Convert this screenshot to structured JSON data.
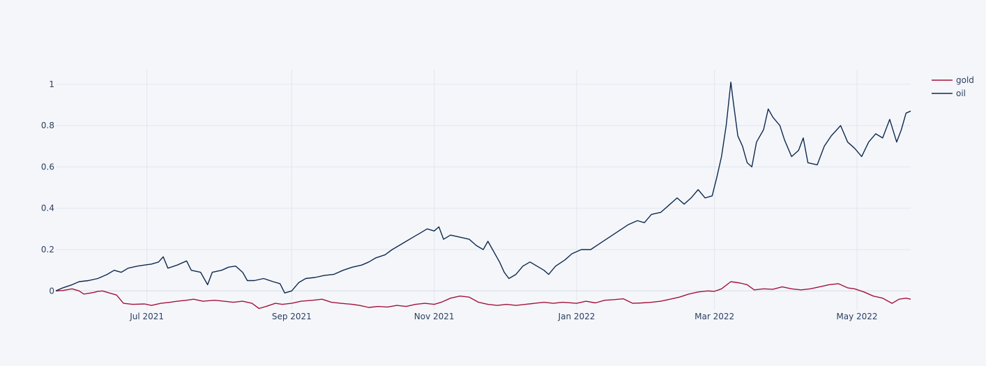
{
  "chart_data": {
    "type": "line",
    "title": "",
    "xlabel": "",
    "ylabel": "",
    "x_range": [
      "2021-05-23",
      "2022-05-24"
    ],
    "ylim": [
      -0.09,
      1.07
    ],
    "grid": true,
    "legend_position": "top-right",
    "x_ticks": [
      {
        "date": "2021-07-01",
        "label": "Jul 2021"
      },
      {
        "date": "2021-09-01",
        "label": "Sep 2021"
      },
      {
        "date": "2021-11-01",
        "label": "Nov 2021"
      },
      {
        "date": "2022-01-01",
        "label": "Jan 2022"
      },
      {
        "date": "2022-03-01",
        "label": "Mar 2022"
      },
      {
        "date": "2022-05-01",
        "label": "May 2022"
      }
    ],
    "y_ticks": [
      {
        "value": 0,
        "label": "0"
      },
      {
        "value": 0.2,
        "label": "0.2"
      },
      {
        "value": 0.4,
        "label": "0.4"
      },
      {
        "value": 0.6,
        "label": "0.6"
      },
      {
        "value": 0.8,
        "label": "0.8"
      },
      {
        "value": 1,
        "label": "1"
      }
    ],
    "series": [
      {
        "name": "gold",
        "color": "#a3123a",
        "points": [
          [
            "2021-05-23",
            0
          ],
          [
            "2021-05-26",
            0.002
          ],
          [
            "2021-05-30",
            0.01
          ],
          [
            "2021-06-02",
            0.0
          ],
          [
            "2021-06-04",
            -0.015
          ],
          [
            "2021-06-08",
            -0.008
          ],
          [
            "2021-06-10",
            -0.002
          ],
          [
            "2021-06-12",
            0.0
          ],
          [
            "2021-06-15",
            -0.01
          ],
          [
            "2021-06-18",
            -0.02
          ],
          [
            "2021-06-21",
            -0.06
          ],
          [
            "2021-06-25",
            -0.065
          ],
          [
            "2021-06-30",
            -0.063
          ],
          [
            "2021-07-03",
            -0.07
          ],
          [
            "2021-07-07",
            -0.06
          ],
          [
            "2021-07-11",
            -0.055
          ],
          [
            "2021-07-14",
            -0.05
          ],
          [
            "2021-07-18",
            -0.045
          ],
          [
            "2021-07-21",
            -0.04
          ],
          [
            "2021-07-25",
            -0.05
          ],
          [
            "2021-07-30",
            -0.045
          ],
          [
            "2021-08-03",
            -0.05
          ],
          [
            "2021-08-07",
            -0.055
          ],
          [
            "2021-08-11",
            -0.05
          ],
          [
            "2021-08-15",
            -0.06
          ],
          [
            "2021-08-18",
            -0.085
          ],
          [
            "2021-08-21",
            -0.075
          ],
          [
            "2021-08-25",
            -0.06
          ],
          [
            "2021-08-28",
            -0.065
          ],
          [
            "2021-09-01",
            -0.06
          ],
          [
            "2021-09-05",
            -0.05
          ],
          [
            "2021-09-10",
            -0.045
          ],
          [
            "2021-09-14",
            -0.04
          ],
          [
            "2021-09-18",
            -0.055
          ],
          [
            "2021-09-22",
            -0.06
          ],
          [
            "2021-09-27",
            -0.065
          ],
          [
            "2021-09-30",
            -0.07
          ],
          [
            "2021-10-04",
            -0.08
          ],
          [
            "2021-10-08",
            -0.075
          ],
          [
            "2021-10-12",
            -0.078
          ],
          [
            "2021-10-16",
            -0.07
          ],
          [
            "2021-10-20",
            -0.075
          ],
          [
            "2021-10-24",
            -0.065
          ],
          [
            "2021-10-28",
            -0.06
          ],
          [
            "2021-11-01",
            -0.065
          ],
          [
            "2021-11-04",
            -0.055
          ],
          [
            "2021-11-08",
            -0.035
          ],
          [
            "2021-11-12",
            -0.025
          ],
          [
            "2021-11-16",
            -0.03
          ],
          [
            "2021-11-20",
            -0.055
          ],
          [
            "2021-11-24",
            -0.065
          ],
          [
            "2021-11-28",
            -0.07
          ],
          [
            "2021-12-02",
            -0.065
          ],
          [
            "2021-12-06",
            -0.07
          ],
          [
            "2021-12-10",
            -0.065
          ],
          [
            "2021-12-14",
            -0.06
          ],
          [
            "2021-12-18",
            -0.055
          ],
          [
            "2021-12-22",
            -0.06
          ],
          [
            "2021-12-26",
            -0.055
          ],
          [
            "2022-01-01",
            -0.06
          ],
          [
            "2022-01-05",
            -0.05
          ],
          [
            "2022-01-09",
            -0.058
          ],
          [
            "2022-01-13",
            -0.045
          ],
          [
            "2022-01-17",
            -0.042
          ],
          [
            "2022-01-21",
            -0.038
          ],
          [
            "2022-01-25",
            -0.06
          ],
          [
            "2022-01-29",
            -0.058
          ],
          [
            "2022-02-02",
            -0.055
          ],
          [
            "2022-02-06",
            -0.05
          ],
          [
            "2022-02-10",
            -0.04
          ],
          [
            "2022-02-14",
            -0.03
          ],
          [
            "2022-02-18",
            -0.015
          ],
          [
            "2022-02-22",
            -0.005
          ],
          [
            "2022-02-26",
            0.0
          ],
          [
            "2022-03-01",
            -0.002
          ],
          [
            "2022-03-04",
            0.01
          ],
          [
            "2022-03-08",
            0.045
          ],
          [
            "2022-03-12",
            0.038
          ],
          [
            "2022-03-15",
            0.03
          ],
          [
            "2022-03-18",
            0.005
          ],
          [
            "2022-03-22",
            0.01
          ],
          [
            "2022-03-26",
            0.008
          ],
          [
            "2022-03-30",
            0.02
          ],
          [
            "2022-04-03",
            0.01
          ],
          [
            "2022-04-07",
            0.005
          ],
          [
            "2022-04-11",
            0.01
          ],
          [
            "2022-04-15",
            0.02
          ],
          [
            "2022-04-19",
            0.03
          ],
          [
            "2022-04-23",
            0.035
          ],
          [
            "2022-04-27",
            0.015
          ],
          [
            "2022-04-30",
            0.01
          ],
          [
            "2022-05-04",
            -0.005
          ],
          [
            "2022-05-08",
            -0.025
          ],
          [
            "2022-05-12",
            -0.035
          ],
          [
            "2022-05-16",
            -0.06
          ],
          [
            "2022-05-19",
            -0.04
          ],
          [
            "2022-05-22",
            -0.035
          ],
          [
            "2022-05-24",
            -0.04
          ]
        ]
      },
      {
        "name": "oil",
        "color": "#0d2a4f",
        "points": [
          [
            "2021-05-23",
            0.0
          ],
          [
            "2021-05-26",
            0.015
          ],
          [
            "2021-05-30",
            0.03
          ],
          [
            "2021-06-02",
            0.045
          ],
          [
            "2021-06-06",
            0.05
          ],
          [
            "2021-06-10",
            0.06
          ],
          [
            "2021-06-14",
            0.08
          ],
          [
            "2021-06-17",
            0.1
          ],
          [
            "2021-06-20",
            0.09
          ],
          [
            "2021-06-23",
            0.11
          ],
          [
            "2021-06-27",
            0.12
          ],
          [
            "2021-06-30",
            0.125
          ],
          [
            "2021-07-03",
            0.13
          ],
          [
            "2021-07-06",
            0.14
          ],
          [
            "2021-07-08",
            0.165
          ],
          [
            "2021-07-10",
            0.11
          ],
          [
            "2021-07-14",
            0.125
          ],
          [
            "2021-07-18",
            0.145
          ],
          [
            "2021-07-20",
            0.1
          ],
          [
            "2021-07-24",
            0.09
          ],
          [
            "2021-07-27",
            0.03
          ],
          [
            "2021-07-29",
            0.09
          ],
          [
            "2021-08-02",
            0.1
          ],
          [
            "2021-08-05",
            0.115
          ],
          [
            "2021-08-08",
            0.12
          ],
          [
            "2021-08-11",
            0.09
          ],
          [
            "2021-08-13",
            0.05
          ],
          [
            "2021-08-16",
            0.05
          ],
          [
            "2021-08-20",
            0.06
          ],
          [
            "2021-08-24",
            0.045
          ],
          [
            "2021-08-27",
            0.035
          ],
          [
            "2021-08-29",
            -0.01
          ],
          [
            "2021-09-01",
            0.0
          ],
          [
            "2021-09-04",
            0.04
          ],
          [
            "2021-09-07",
            0.06
          ],
          [
            "2021-09-11",
            0.065
          ],
          [
            "2021-09-15",
            0.075
          ],
          [
            "2021-09-19",
            0.08
          ],
          [
            "2021-09-23",
            0.1
          ],
          [
            "2021-09-27",
            0.115
          ],
          [
            "2021-10-01",
            0.125
          ],
          [
            "2021-10-04",
            0.14
          ],
          [
            "2021-10-07",
            0.16
          ],
          [
            "2021-10-11",
            0.175
          ],
          [
            "2021-10-14",
            0.2
          ],
          [
            "2021-10-17",
            0.22
          ],
          [
            "2021-10-20",
            0.24
          ],
          [
            "2021-10-23",
            0.26
          ],
          [
            "2021-10-26",
            0.28
          ],
          [
            "2021-10-29",
            0.3
          ],
          [
            "2021-11-01",
            0.29
          ],
          [
            "2021-11-03",
            0.31
          ],
          [
            "2021-11-05",
            0.25
          ],
          [
            "2021-11-08",
            0.27
          ],
          [
            "2021-11-12",
            0.26
          ],
          [
            "2021-11-16",
            0.25
          ],
          [
            "2021-11-19",
            0.22
          ],
          [
            "2021-11-22",
            0.2
          ],
          [
            "2021-11-24",
            0.24
          ],
          [
            "2021-11-26",
            0.2
          ],
          [
            "2021-11-29",
            0.14
          ],
          [
            "2021-12-01",
            0.09
          ],
          [
            "2021-12-03",
            0.06
          ],
          [
            "2021-12-06",
            0.08
          ],
          [
            "2021-12-09",
            0.12
          ],
          [
            "2021-12-12",
            0.14
          ],
          [
            "2021-12-15",
            0.12
          ],
          [
            "2021-12-18",
            0.1
          ],
          [
            "2021-12-20",
            0.08
          ],
          [
            "2021-12-23",
            0.12
          ],
          [
            "2021-12-27",
            0.15
          ],
          [
            "2021-12-30",
            0.18
          ],
          [
            "2022-01-03",
            0.2
          ],
          [
            "2022-01-07",
            0.2
          ],
          [
            "2022-01-11",
            0.23
          ],
          [
            "2022-01-15",
            0.26
          ],
          [
            "2022-01-19",
            0.29
          ],
          [
            "2022-01-23",
            0.32
          ],
          [
            "2022-01-27",
            0.34
          ],
          [
            "2022-01-30",
            0.33
          ],
          [
            "2022-02-02",
            0.37
          ],
          [
            "2022-02-06",
            0.38
          ],
          [
            "2022-02-10",
            0.42
          ],
          [
            "2022-02-13",
            0.45
          ],
          [
            "2022-02-16",
            0.42
          ],
          [
            "2022-02-19",
            0.45
          ],
          [
            "2022-02-22",
            0.49
          ],
          [
            "2022-02-25",
            0.45
          ],
          [
            "2022-02-28",
            0.46
          ],
          [
            "2022-03-02",
            0.55
          ],
          [
            "2022-03-04",
            0.65
          ],
          [
            "2022-03-06",
            0.8
          ],
          [
            "2022-03-08",
            1.01
          ],
          [
            "2022-03-09",
            0.92
          ],
          [
            "2022-03-11",
            0.75
          ],
          [
            "2022-03-13",
            0.7
          ],
          [
            "2022-03-15",
            0.62
          ],
          [
            "2022-03-17",
            0.6
          ],
          [
            "2022-03-19",
            0.72
          ],
          [
            "2022-03-22",
            0.78
          ],
          [
            "2022-03-24",
            0.88
          ],
          [
            "2022-03-26",
            0.84
          ],
          [
            "2022-03-29",
            0.8
          ],
          [
            "2022-03-31",
            0.73
          ],
          [
            "2022-04-03",
            0.65
          ],
          [
            "2022-04-06",
            0.68
          ],
          [
            "2022-04-08",
            0.74
          ],
          [
            "2022-04-10",
            0.62
          ],
          [
            "2022-04-14",
            0.61
          ],
          [
            "2022-04-17",
            0.7
          ],
          [
            "2022-04-20",
            0.75
          ],
          [
            "2022-04-24",
            0.8
          ],
          [
            "2022-04-27",
            0.72
          ],
          [
            "2022-04-30",
            0.69
          ],
          [
            "2022-05-03",
            0.65
          ],
          [
            "2022-05-06",
            0.72
          ],
          [
            "2022-05-09",
            0.76
          ],
          [
            "2022-05-12",
            0.74
          ],
          [
            "2022-05-15",
            0.83
          ],
          [
            "2022-05-18",
            0.72
          ],
          [
            "2022-05-20",
            0.78
          ],
          [
            "2022-05-22",
            0.86
          ],
          [
            "2022-05-24",
            0.87
          ]
        ]
      }
    ]
  }
}
